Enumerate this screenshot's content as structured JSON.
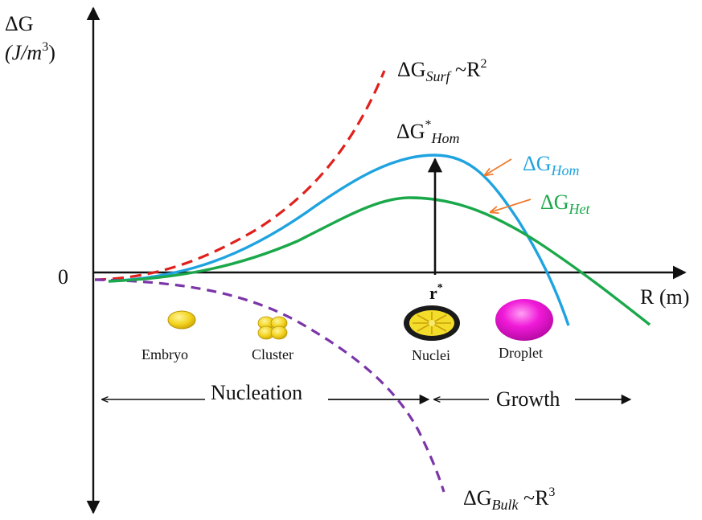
{
  "y_axis": {
    "symbol": "ΔG",
    "unit_base": "(J/m",
    "unit_exp": "3",
    "unit_close": ")"
  },
  "x_axis": {
    "label": "R (m)"
  },
  "origin_label": "0",
  "critical_radius": {
    "label": "r",
    "star": "*"
  },
  "curves": {
    "surface": {
      "delta": "ΔG",
      "sub": "Surf",
      "rel": " ~R",
      "exp": "2",
      "color": "#e0201c"
    },
    "bulk": {
      "delta": "ΔG",
      "sub": "Bulk",
      "rel": " ~R",
      "exp": "3",
      "color": "#7a35a8"
    },
    "homogeneous": {
      "delta": "ΔG",
      "sub": "Hom",
      "color": "#1fa3e0"
    },
    "heterogeneous": {
      "delta": "ΔG",
      "sub": "Het",
      "color": "#1aa84a"
    }
  },
  "barrier_label": {
    "delta": "ΔG",
    "star": "*",
    "sub": "Hom"
  },
  "particles": {
    "embryo": "Embryo",
    "cluster": "Cluster",
    "nuclei": "Nuclei",
    "droplet": "Droplet"
  },
  "stages": {
    "nucleation": "Nucleation",
    "growth": "Growth"
  }
}
